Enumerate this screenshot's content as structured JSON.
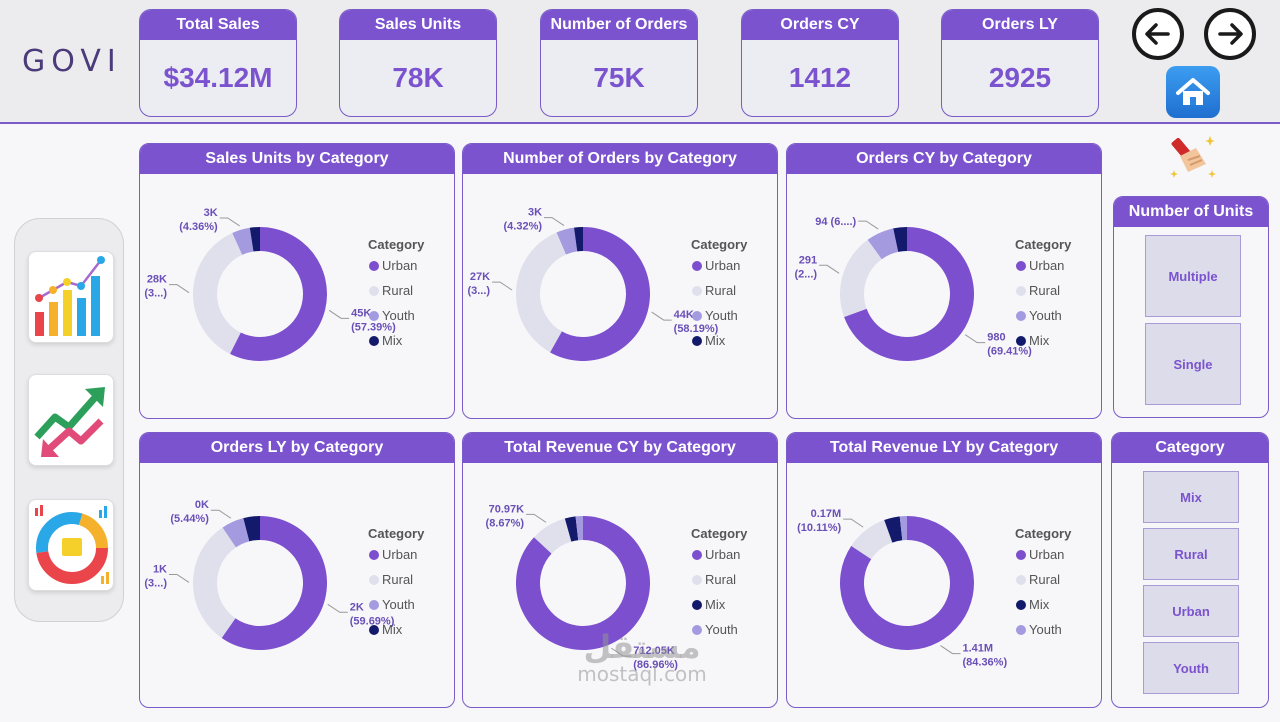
{
  "brand": {
    "logo_text": "GOVI"
  },
  "kpis": [
    {
      "label": "Total Sales",
      "value": "$34.12M"
    },
    {
      "label": "Sales Units",
      "value": "78K"
    },
    {
      "label": "Number of Orders",
      "value": "75K"
    },
    {
      "label": "Orders CY",
      "value": "1412"
    },
    {
      "label": "Orders LY",
      "value": "2925"
    }
  ],
  "nav": {
    "back_icon": "arrow-left-icon",
    "forward_icon": "arrow-right-icon",
    "home_icon": "home-icon",
    "clear_icon": "clear-filters-broom-icon",
    "side_icons": [
      "bar-chart-report-icon",
      "trend-arrows-report-icon",
      "donut-chart-report-icon"
    ]
  },
  "colors": {
    "Urban": "#7b4fcd",
    "Rural": "#dfe0ec",
    "Youth": "#a49ae0",
    "Mix": "#141a6b",
    "accent": "#7b53cf"
  },
  "legend_title": "Category",
  "chart_data": [
    {
      "type": "donut",
      "title": "Sales Units by Category",
      "legend": [
        "Urban",
        "Rural",
        "Youth",
        "Mix"
      ],
      "slices": [
        {
          "name": "Urban",
          "pct": 57.39,
          "label": "45K",
          "sub": "(57.39%)"
        },
        {
          "name": "Rural",
          "pct": 35.82,
          "label": "28K",
          "sub": "(3...)"
        },
        {
          "name": "Youth",
          "pct": 4.36,
          "label": "3K",
          "sub": "(4.36%)"
        },
        {
          "name": "Mix",
          "pct": 2.43
        }
      ]
    },
    {
      "type": "donut",
      "title": "Number of Orders by Category",
      "legend": [
        "Urban",
        "Rural",
        "Youth",
        "Mix"
      ],
      "slices": [
        {
          "name": "Urban",
          "pct": 58.19,
          "label": "44K",
          "sub": "(58.19%)"
        },
        {
          "name": "Rural",
          "pct": 35.35,
          "label": "27K",
          "sub": "(3...)"
        },
        {
          "name": "Youth",
          "pct": 4.32,
          "label": "3K",
          "sub": "(4.32%)"
        },
        {
          "name": "Mix",
          "pct": 2.14
        }
      ]
    },
    {
      "type": "donut",
      "title": "Orders CY by Category",
      "legend": [
        "Urban",
        "Rural",
        "Youth",
        "Mix"
      ],
      "slices": [
        {
          "name": "Urban",
          "pct": 69.41,
          "label": "980",
          "sub": "(69.41%)"
        },
        {
          "name": "Rural",
          "pct": 20.6,
          "label": "291",
          "sub": "(2...)"
        },
        {
          "name": "Youth",
          "pct": 6.7,
          "label": "94 (6....)",
          "sub": ""
        },
        {
          "name": "Mix",
          "pct": 3.29
        }
      ]
    },
    {
      "type": "donut",
      "title": "Orders LY by Category",
      "legend": [
        "Urban",
        "Rural",
        "Youth",
        "Mix"
      ],
      "slices": [
        {
          "name": "Urban",
          "pct": 59.69,
          "label": "2K",
          "sub": "(59.69%)"
        },
        {
          "name": "Rural",
          "pct": 30.87,
          "label": "1K",
          "sub": "(3...)"
        },
        {
          "name": "Youth",
          "pct": 5.44,
          "label": "0K",
          "sub": "(5.44%)"
        },
        {
          "name": "Mix",
          "pct": 4.0
        }
      ]
    },
    {
      "type": "donut",
      "title": "Total Revenue CY by Category",
      "legend": [
        "Urban",
        "Rural",
        "Mix",
        "Youth"
      ],
      "slices": [
        {
          "name": "Urban",
          "pct": 86.96,
          "label": "712.05K",
          "sub": "(86.96%)"
        },
        {
          "name": "Rural",
          "pct": 8.67,
          "label": "70.97K",
          "sub": "(8.67%)"
        },
        {
          "name": "Mix",
          "pct": 2.6
        },
        {
          "name": "Youth",
          "pct": 1.77
        }
      ]
    },
    {
      "type": "donut",
      "title": "Total Revenue LY by Category",
      "legend": [
        "Urban",
        "Rural",
        "Mix",
        "Youth"
      ],
      "slices": [
        {
          "name": "Urban",
          "pct": 84.36,
          "label": "1.41M",
          "sub": "(84.36%)"
        },
        {
          "name": "Rural",
          "pct": 10.11,
          "label": "0.17M",
          "sub": "(10.11%)"
        },
        {
          "name": "Mix",
          "pct": 3.8
        },
        {
          "name": "Youth",
          "pct": 1.73
        }
      ]
    }
  ],
  "slicers": [
    {
      "title": "Number of Units",
      "options": [
        "Multiple",
        "Single"
      ]
    },
    {
      "title": "Category",
      "options": [
        "Mix",
        "Rural",
        "Urban",
        "Youth"
      ]
    }
  ],
  "watermark": {
    "arabic": "مستقل",
    "latin": "mostaql.com"
  }
}
